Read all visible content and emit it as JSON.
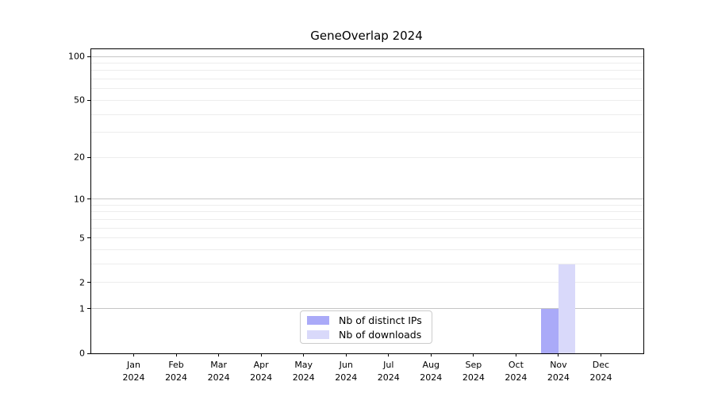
{
  "title": "GeneOverlap 2024",
  "chart_data": {
    "type": "bar",
    "title": "GeneOverlap 2024",
    "categories": [
      "Jan",
      "Feb",
      "Mar",
      "Apr",
      "May",
      "Jun",
      "Jul",
      "Aug",
      "Sep",
      "Oct",
      "Nov",
      "Dec"
    ],
    "year": "2024",
    "series": [
      {
        "name": "Nb of distinct IPs",
        "color": "#aaaaf8",
        "values": [
          0,
          0,
          0,
          0,
          0,
          0,
          0,
          0,
          0,
          0,
          1,
          0
        ]
      },
      {
        "name": "Nb of downloads",
        "color": "#d9d9fa",
        "values": [
          0,
          0,
          0,
          0,
          0,
          0,
          0,
          0,
          0,
          0,
          3,
          0
        ]
      }
    ],
    "xlabel": "",
    "ylabel": "",
    "y_scale": "log1p",
    "ylim": [
      0,
      112
    ],
    "y_ticks": [
      0,
      1,
      2,
      5,
      10,
      20,
      50,
      100
    ],
    "y_major_gridlines": [
      1,
      10,
      100
    ],
    "y_minor_gridlines": [
      2,
      3,
      4,
      5,
      6,
      7,
      8,
      9,
      20,
      30,
      40,
      50,
      60,
      70,
      80,
      90
    ],
    "grid": true,
    "legend_position": "lower center",
    "axis_color": "#000000",
    "gridline_minor_color": "#ededed",
    "gridline_major_color": "#c6c6c6"
  }
}
